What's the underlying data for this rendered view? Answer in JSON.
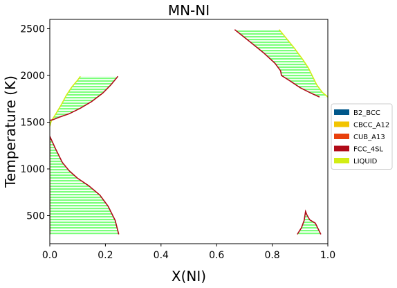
{
  "chart_data": {
    "type": "phase-diagram",
    "title": "MN-NI",
    "xlabel": "X(NI)",
    "ylabel": "Temperature (K)",
    "xlim": [
      0.0,
      1.0
    ],
    "ylim": [
      200,
      2600
    ],
    "xticks": [
      "0.0",
      "0.2",
      "0.4",
      "0.6",
      "0.8",
      "1.0"
    ],
    "xtick_values": [
      0.0,
      0.2,
      0.4,
      0.6,
      0.8,
      1.0
    ],
    "yticks": [
      "500",
      "1000",
      "1500",
      "2000",
      "2500"
    ],
    "ytick_values": [
      500,
      1000,
      1500,
      2000,
      2500
    ],
    "legend": {
      "placement": "right",
      "entries": [
        {
          "name": "B2_BCC",
          "color": "#00578a"
        },
        {
          "name": "CBCC_A12",
          "color": "#f2c400"
        },
        {
          "name": "CUB_A13",
          "color": "#e8400c"
        },
        {
          "name": "FCC_4SL",
          "color": "#b00a18"
        },
        {
          "name": "LIQUID",
          "color": "#d2ed14"
        }
      ]
    },
    "fill_color": "#7cff7c",
    "regions": [
      {
        "phase": "upper-left two-phase region",
        "top_temperature": 1990,
        "left_boundary_color": "#d2ed14",
        "right_boundary_color": "#b00a18",
        "left_boundary": [
          [
            0.0,
            1455
          ],
          [
            0.005,
            1510
          ],
          [
            0.02,
            1580
          ],
          [
            0.04,
            1680
          ],
          [
            0.06,
            1790
          ],
          [
            0.08,
            1880
          ],
          [
            0.1,
            1950
          ],
          [
            0.11,
            1990
          ]
        ],
        "right_boundary": [
          [
            0.245,
            1990
          ],
          [
            0.22,
            1900
          ],
          [
            0.19,
            1810
          ],
          [
            0.15,
            1720
          ],
          [
            0.11,
            1650
          ],
          [
            0.07,
            1590
          ],
          [
            0.035,
            1555
          ],
          [
            0.01,
            1525
          ],
          [
            0.0,
            1520
          ]
        ]
      },
      {
        "phase": "upper-right two-phase region",
        "top_temperature": 2490,
        "left_boundary_color": "#b00a18",
        "right_boundary_color": "#d2ed14",
        "left_boundary": [
          [
            0.665,
            2490
          ],
          [
            0.72,
            2360
          ],
          [
            0.77,
            2240
          ],
          [
            0.81,
            2130
          ],
          [
            0.83,
            2050
          ],
          [
            0.833,
            2000
          ],
          [
            0.86,
            1950
          ],
          [
            0.9,
            1870
          ],
          [
            0.94,
            1810
          ],
          [
            0.97,
            1770
          ]
        ],
        "right_boundary": [
          [
            1.0,
            1770
          ],
          [
            0.98,
            1820
          ],
          [
            0.96,
            1900
          ],
          [
            0.945,
            1990
          ],
          [
            0.93,
            2080
          ],
          [
            0.91,
            2170
          ],
          [
            0.88,
            2290
          ],
          [
            0.85,
            2400
          ],
          [
            0.825,
            2490
          ]
        ]
      },
      {
        "phase": "lower-left two-phase region",
        "bottom_temperature": 300,
        "boundary_color": "#b00a18",
        "left_boundary": [
          [
            0.0,
            300
          ],
          [
            0.0,
            1350
          ]
        ],
        "right_boundary": [
          [
            0.0,
            1350
          ],
          [
            0.02,
            1220
          ],
          [
            0.045,
            1070
          ],
          [
            0.07,
            980
          ],
          [
            0.1,
            900
          ],
          [
            0.14,
            820
          ],
          [
            0.18,
            720
          ],
          [
            0.21,
            600
          ],
          [
            0.235,
            450
          ],
          [
            0.248,
            300
          ]
        ]
      },
      {
        "phase": "lower-right two-phase region",
        "bottom_temperature": 300,
        "boundary_color": "#b00a18",
        "outline": [
          [
            0.89,
            300
          ],
          [
            0.905,
            370
          ],
          [
            0.915,
            450
          ],
          [
            0.92,
            545
          ],
          [
            0.925,
            505
          ],
          [
            0.935,
            455
          ],
          [
            0.955,
            420
          ],
          [
            0.975,
            300
          ]
        ]
      }
    ]
  }
}
